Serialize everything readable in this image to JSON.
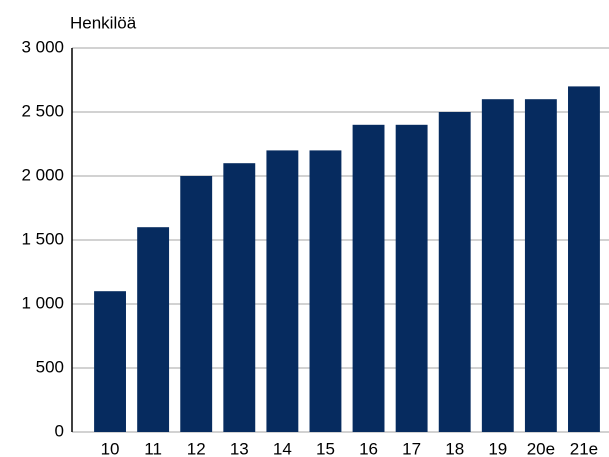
{
  "chart_data": {
    "type": "bar",
    "ylabel": "Henkilöä",
    "categories": [
      "10",
      "11",
      "12",
      "13",
      "14",
      "15",
      "16",
      "17",
      "18",
      "19",
      "20e",
      "21e"
    ],
    "values": [
      1100,
      1600,
      2000,
      2100,
      2200,
      2200,
      2400,
      2400,
      2500,
      2600,
      2600,
      2700
    ],
    "color": "#062b5f",
    "ylim": [
      0,
      3000
    ],
    "yticks": [
      0,
      500,
      {
        "value": 1000,
        "label": "1 000"
      },
      {
        "value": 1500,
        "label": "1 500"
      },
      {
        "value": 2000,
        "label": "2 000"
      },
      {
        "value": 2500,
        "label": "2 500"
      },
      {
        "value": 3000,
        "label": "3 000"
      }
    ],
    "grid": true
  }
}
